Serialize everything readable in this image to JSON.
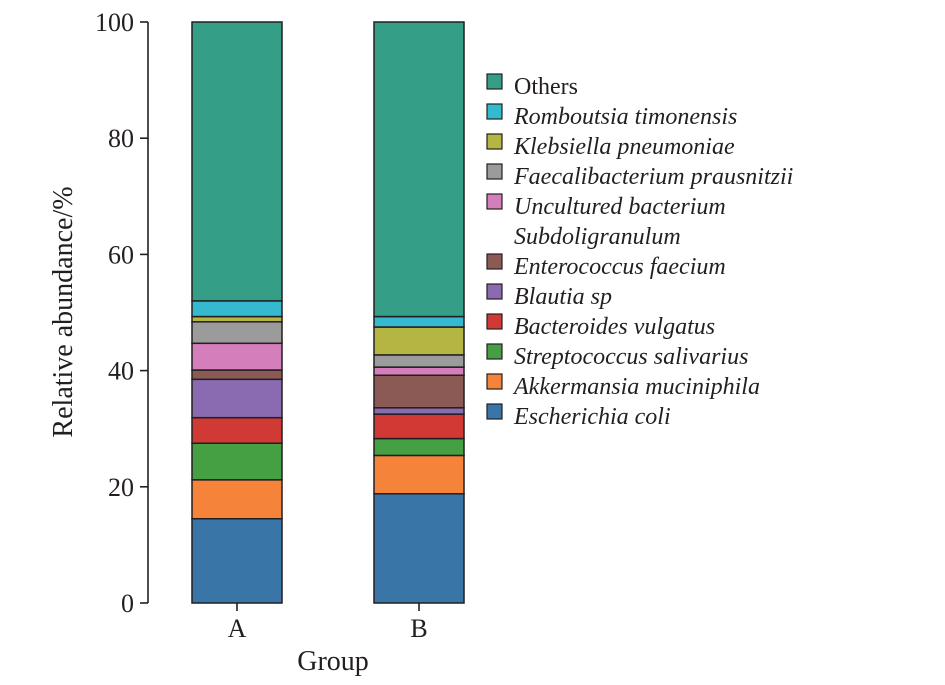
{
  "chart_data": {
    "type": "bar",
    "stacked": true,
    "categories": [
      "A",
      "B"
    ],
    "xlabel": "Group",
    "ylabel": "Relative abundance/%",
    "ylim": [
      0,
      100
    ],
    "yticks": [
      "0",
      "20",
      "40",
      "60",
      "80",
      "100"
    ],
    "legend_placement": "right",
    "series": [
      {
        "name": "Escherichia coli",
        "color": "#3a75a8",
        "values": [
          14.5,
          18.8
        ],
        "italic": true
      },
      {
        "name": "Akkermansia muciniphila",
        "color": "#f5843a",
        "values": [
          6.7,
          6.6
        ],
        "italic": true
      },
      {
        "name": "Streptococcus salivarius",
        "color": "#45a043",
        "values": [
          6.3,
          2.9
        ],
        "italic": true
      },
      {
        "name": "Bacteroides vulgatus",
        "color": "#d13a34",
        "values": [
          4.4,
          4.2
        ],
        "italic": true
      },
      {
        "name": "Blautia sp",
        "color": "#8a6ab1",
        "values": [
          6.6,
          1.1
        ],
        "italic": true
      },
      {
        "name": "Enterococcus faecium",
        "color": "#8c5a54",
        "values": [
          1.6,
          5.6
        ],
        "italic": true
      },
      {
        "name": "Uncultured bacterium Subdoligranulum",
        "name_lines": [
          "Uncultured bacterium",
          "Subdoligranulum"
        ],
        "color": "#d47fbc",
        "values": [
          4.6,
          1.4
        ],
        "italic": true
      },
      {
        "name": "Faecalibacterium prausnitzii",
        "color": "#9b9b9b",
        "values": [
          3.7,
          2.1
        ],
        "italic": true
      },
      {
        "name": "Klebsiella pneumoniae",
        "color": "#b5b544",
        "values": [
          0.9,
          4.8
        ],
        "italic": true
      },
      {
        "name": "Romboutsia timonensis",
        "color": "#35b9cf",
        "values": [
          2.7,
          1.8
        ],
        "italic": true
      },
      {
        "name": "Others",
        "color": "#359e87",
        "values": [
          48.0,
          50.7
        ],
        "italic": false
      }
    ]
  }
}
